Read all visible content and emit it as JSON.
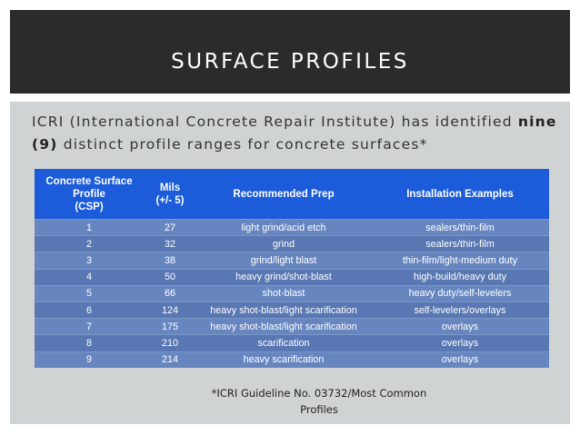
{
  "slide": {
    "title": "SURFACE PROFILES",
    "intro_text": "ICRI (International Concrete Repair Institute) has identified ",
    "intro_bold_word": "nine",
    "intro_bold_num": "(9)",
    "intro_rest": " distinct profile ranges for concrete surfaces*",
    "footnote": "*ICRI Guideline No. 03732/Most Common Profiles"
  },
  "table": {
    "headers": [
      "Concrete Surface Profile (CSP)",
      "Mils (+/- 5)",
      "Recommended Prep",
      "Installation Examples"
    ],
    "rows": [
      [
        "1",
        "27",
        "light grind/acid etch",
        "sealers/thin-film"
      ],
      [
        "2",
        "32",
        "grind",
        "sealers/thin-film"
      ],
      [
        "3",
        "38",
        "grind/light blast",
        "thin-film/light-medium duty"
      ],
      [
        "4",
        "50",
        "heavy grind/shot-blast",
        "high-build/heavy duty"
      ],
      [
        "5",
        "66",
        "shot-blast",
        "heavy duty/self-levelers"
      ],
      [
        "6",
        "124",
        "heavy shot-blast/light scarification",
        "self-levelers/overlays"
      ],
      [
        "7",
        "175",
        "heavy shot-blast/light scarification",
        "overlays"
      ],
      [
        "8",
        "210",
        "scarification",
        "overlays"
      ],
      [
        "9",
        "214",
        "heavy scarification",
        "overlays"
      ]
    ]
  },
  "colors": {
    "header_bg": "#2b2b2b",
    "content_bg": "#cfd3d4",
    "table_header": "#1c5bd9",
    "table_row": "#6786c0"
  }
}
